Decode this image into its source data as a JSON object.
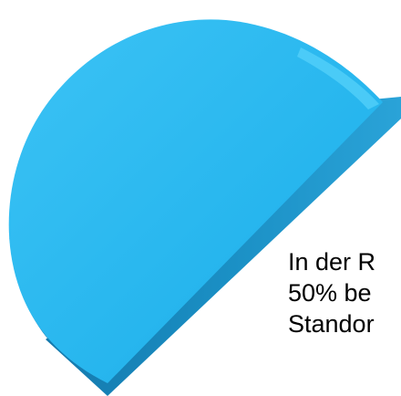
{
  "graphic": {
    "shape": "half-disc-3d",
    "fill_color": "#27b6ee",
    "edge_color": "#1a8fc4",
    "highlight_color": "#4fd0fb"
  },
  "caption": {
    "line1": "In der R",
    "line2": "50% be",
    "line3": "Standor"
  }
}
